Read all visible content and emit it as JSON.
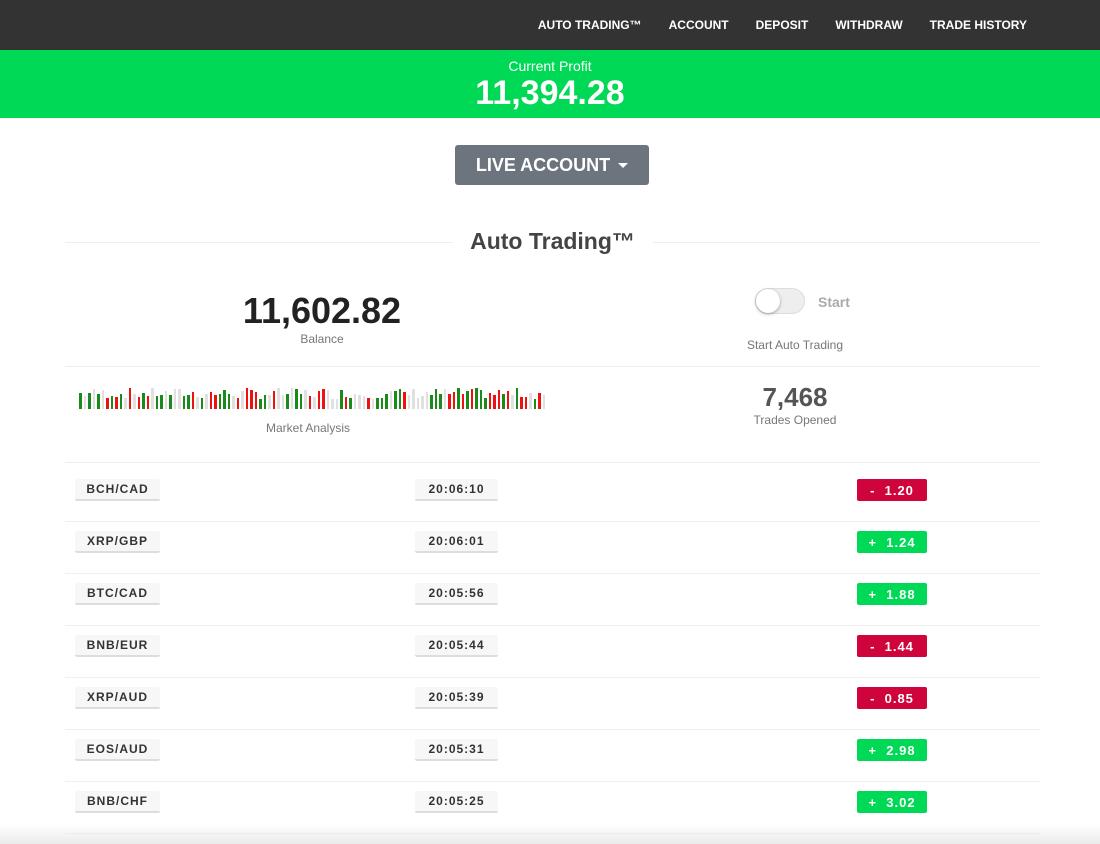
{
  "nav": {
    "items": [
      "AUTO TRADING™",
      "ACCOUNT",
      "DEPOSIT",
      "WITHDRAW",
      "TRADE HISTORY"
    ]
  },
  "profit": {
    "label": "Current Profit",
    "value": "11,394.28"
  },
  "account_button": {
    "label": "LIVE ACCOUNT"
  },
  "section_title": "Auto Trading™",
  "balance": {
    "value": "11,602.82",
    "label": "Balance"
  },
  "toggle": {
    "label": "Start",
    "caption": "Start Auto Trading",
    "on": false
  },
  "market": {
    "label": "Market Analysis"
  },
  "trades": {
    "value": "7,468",
    "label": "Trades Opened"
  },
  "colors": {
    "up": "#00d955",
    "down": "#d0043c",
    "neutral": "#e0e0e0",
    "nav": "#333333"
  },
  "rows": [
    {
      "pair": "BCH/CAD",
      "time": "20:06:10",
      "amount": "-  1.20",
      "dir": "down"
    },
    {
      "pair": "XRP/GBP",
      "time": "20:06:01",
      "amount": "+  1.24",
      "dir": "up"
    },
    {
      "pair": "BTC/CAD",
      "time": "20:05:56",
      "amount": "+  1.88",
      "dir": "up"
    },
    {
      "pair": "BNB/EUR",
      "time": "20:05:44",
      "amount": "-  1.44",
      "dir": "down"
    },
    {
      "pair": "XRP/AUD",
      "time": "20:05:39",
      "amount": "-  0.85",
      "dir": "down"
    },
    {
      "pair": "EOS/AUD",
      "time": "20:05:31",
      "amount": "+  2.98",
      "dir": "up"
    },
    {
      "pair": "BNB/CHF",
      "time": "20:05:25",
      "amount": "+  3.02",
      "dir": "up"
    }
  ]
}
